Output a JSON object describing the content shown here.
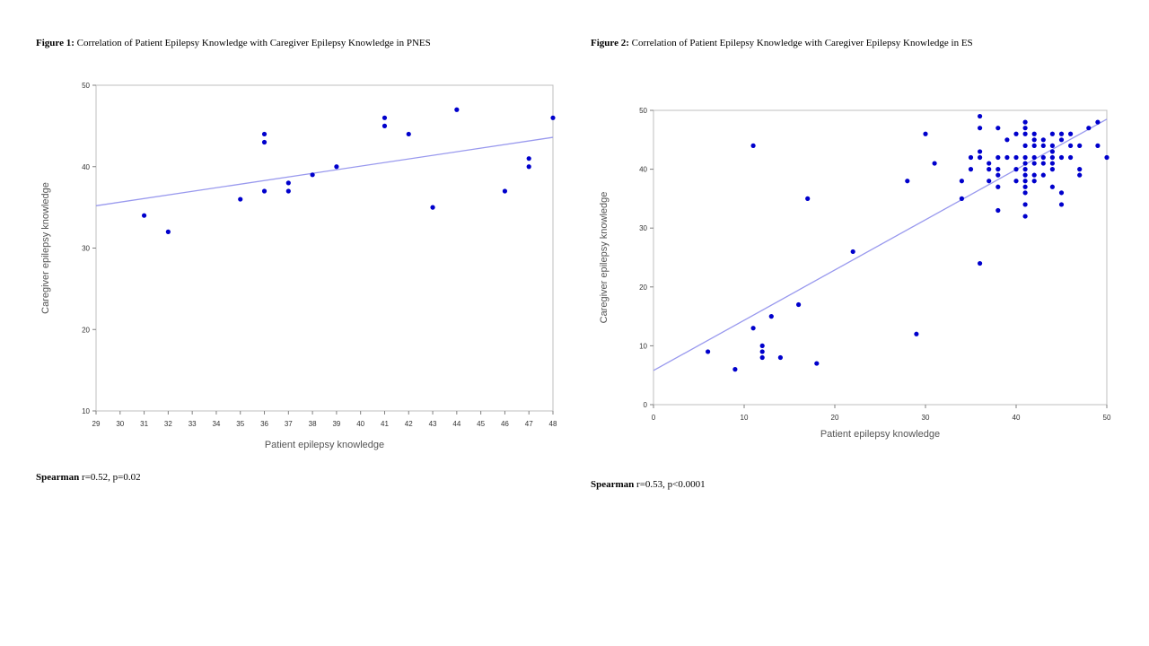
{
  "figures": [
    {
      "label": "Figure 1:",
      "title": "Correlation of Patient Epilepsy Knowledge with Caregiver Epilepsy Knowledge in PNES",
      "stat_label": "Spearman",
      "stat_value": "r=0.52, p=0.02"
    },
    {
      "label": "Figure 2:",
      "title": "Correlation of Patient Epilepsy Knowledge with Caregiver Epilepsy Knowledge in ES",
      "stat_label": "Spearman",
      "stat_value": "r=0.53, p<0.0001"
    }
  ],
  "chart_data": [
    {
      "type": "scatter",
      "title": "",
      "xlabel": "Patient epilepsy knowledge",
      "ylabel": "Caregiver epilepsy knowledge",
      "xlim": [
        29,
        48
      ],
      "ylim": [
        10,
        50
      ],
      "xticks": [
        29,
        30,
        31,
        32,
        33,
        34,
        35,
        36,
        37,
        38,
        39,
        40,
        41,
        42,
        43,
        44,
        45,
        46,
        47,
        48
      ],
      "yticks": [
        10,
        20,
        30,
        40,
        50
      ],
      "grid": false,
      "colors": {
        "points": "#0000cc",
        "fit_line": "#9999ee",
        "frame": "#bfbfbf"
      },
      "points": [
        [
          31,
          34
        ],
        [
          32,
          32
        ],
        [
          35,
          36
        ],
        [
          36,
          44
        ],
        [
          36,
          43
        ],
        [
          36,
          37
        ],
        [
          37,
          38
        ],
        [
          37,
          37
        ],
        [
          38,
          39
        ],
        [
          39,
          40
        ],
        [
          41,
          46
        ],
        [
          41,
          45
        ],
        [
          42,
          44
        ],
        [
          43,
          35
        ],
        [
          44,
          47
        ],
        [
          46,
          37
        ],
        [
          47,
          41
        ],
        [
          47,
          40
        ],
        [
          48,
          46
        ]
      ],
      "fit_line": [
        [
          29,
          35.2
        ],
        [
          48,
          43.6
        ]
      ]
    },
    {
      "type": "scatter",
      "title": "",
      "xlabel": "Patient epilepsy knowledge",
      "ylabel": "Caregiver epilepsy knowledge",
      "xlim": [
        0,
        50
      ],
      "ylim": [
        0,
        50
      ],
      "xticks": [
        0,
        10,
        20,
        30,
        40,
        50
      ],
      "yticks": [
        0,
        10,
        20,
        30,
        40,
        50
      ],
      "grid": false,
      "colors": {
        "points": "#0000cc",
        "fit_line": "#9999ee",
        "frame": "#bfbfbf"
      },
      "points": [
        [
          6,
          9
        ],
        [
          9,
          6
        ],
        [
          11,
          13
        ],
        [
          11,
          44
        ],
        [
          12,
          10
        ],
        [
          12,
          9
        ],
        [
          12,
          8
        ],
        [
          13,
          15
        ],
        [
          14,
          8
        ],
        [
          16,
          17
        ],
        [
          17,
          35
        ],
        [
          18,
          7
        ],
        [
          22,
          26
        ],
        [
          28,
          38
        ],
        [
          29,
          12
        ],
        [
          30,
          46
        ],
        [
          31,
          41
        ],
        [
          34,
          38
        ],
        [
          34,
          35
        ],
        [
          35,
          42
        ],
        [
          35,
          40
        ],
        [
          36,
          49
        ],
        [
          36,
          47
        ],
        [
          36,
          43
        ],
        [
          36,
          42
        ],
        [
          36,
          24
        ],
        [
          37,
          41
        ],
        [
          37,
          40
        ],
        [
          37,
          38
        ],
        [
          38,
          47
        ],
        [
          38,
          42
        ],
        [
          38,
          40
        ],
        [
          38,
          39
        ],
        [
          38,
          37
        ],
        [
          38,
          33
        ],
        [
          39,
          45
        ],
        [
          39,
          42
        ],
        [
          40,
          46
        ],
        [
          40,
          42
        ],
        [
          40,
          40
        ],
        [
          40,
          38
        ],
        [
          41,
          48
        ],
        [
          41,
          47
        ],
        [
          41,
          46
        ],
        [
          41,
          44
        ],
        [
          41,
          42
        ],
        [
          41,
          41
        ],
        [
          41,
          40
        ],
        [
          41,
          39
        ],
        [
          41,
          38
        ],
        [
          41,
          37
        ],
        [
          41,
          36
        ],
        [
          41,
          34
        ],
        [
          41,
          32
        ],
        [
          42,
          46
        ],
        [
          42,
          45
        ],
        [
          42,
          44
        ],
        [
          42,
          42
        ],
        [
          42,
          41
        ],
        [
          42,
          39
        ],
        [
          42,
          38
        ],
        [
          43,
          45
        ],
        [
          43,
          44
        ],
        [
          43,
          42
        ],
        [
          43,
          41
        ],
        [
          43,
          39
        ],
        [
          44,
          46
        ],
        [
          44,
          44
        ],
        [
          44,
          43
        ],
        [
          44,
          42
        ],
        [
          44,
          41
        ],
        [
          44,
          40
        ],
        [
          44,
          37
        ],
        [
          45,
          46
        ],
        [
          45,
          45
        ],
        [
          45,
          42
        ],
        [
          45,
          36
        ],
        [
          45,
          34
        ],
        [
          46,
          46
        ],
        [
          46,
          44
        ],
        [
          46,
          42
        ],
        [
          47,
          44
        ],
        [
          47,
          40
        ],
        [
          47,
          39
        ],
        [
          48,
          47
        ],
        [
          49,
          48
        ],
        [
          49,
          44
        ],
        [
          50,
          42
        ]
      ],
      "fit_line": [
        [
          0,
          5.8
        ],
        [
          50,
          48.5
        ]
      ]
    }
  ]
}
